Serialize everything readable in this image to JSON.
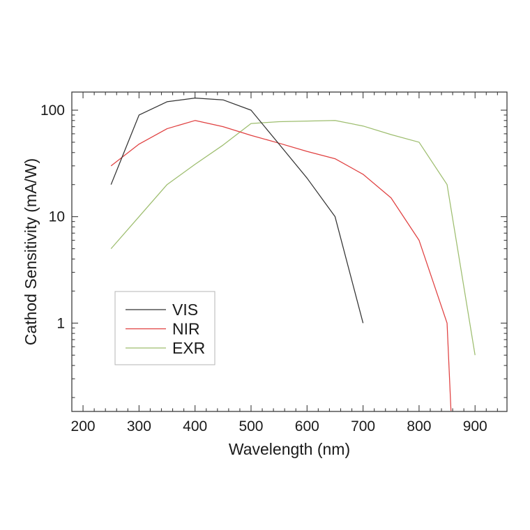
{
  "figure": {
    "background": "#ffffff"
  },
  "chart_data": {
    "type": "line",
    "title": "",
    "xlabel": "Wavelength (nm)",
    "ylabel": "Cathod Sensitivity (mA/W)",
    "x_scale": "linear",
    "y_scale": "log",
    "xlim": [
      180,
      957
    ],
    "ylim": [
      0.148,
      148
    ],
    "x_major_ticks": [
      200,
      300,
      400,
      500,
      600,
      700,
      800,
      900
    ],
    "x_tick_labels": [
      "200",
      "300",
      "400",
      "500",
      "600",
      "700",
      "800",
      "900"
    ],
    "x_minor_step": 20,
    "y_major_ticks": [
      1,
      10,
      100
    ],
    "y_tick_labels": [
      "1",
      "10",
      "100"
    ],
    "grid": false,
    "legend_position": "lower-left",
    "frame_color": "#3c3c3c",
    "series": [
      {
        "name": "VIS",
        "color": "#333333",
        "points": [
          [
            250,
            20
          ],
          [
            300,
            90
          ],
          [
            350,
            120
          ],
          [
            400,
            130
          ],
          [
            450,
            125
          ],
          [
            500,
            100
          ],
          [
            550,
            48
          ],
          [
            600,
            23
          ],
          [
            650,
            10
          ],
          [
            700,
            1
          ]
        ]
      },
      {
        "name": "NIR",
        "color": "#e04040",
        "points": [
          [
            250,
            30
          ],
          [
            300,
            48
          ],
          [
            350,
            67
          ],
          [
            400,
            80
          ],
          [
            450,
            70
          ],
          [
            500,
            58
          ],
          [
            550,
            49
          ],
          [
            600,
            41
          ],
          [
            650,
            35
          ],
          [
            700,
            25
          ],
          [
            750,
            15
          ],
          [
            800,
            6
          ],
          [
            850,
            1
          ],
          [
            857,
            0.15
          ]
        ]
      },
      {
        "name": "EXR",
        "color": "#9dbd6e",
        "points": [
          [
            250,
            5
          ],
          [
            300,
            10
          ],
          [
            350,
            20
          ],
          [
            400,
            31
          ],
          [
            450,
            47
          ],
          [
            500,
            75
          ],
          [
            550,
            78
          ],
          [
            600,
            79
          ],
          [
            650,
            80
          ],
          [
            700,
            71
          ],
          [
            750,
            59
          ],
          [
            800,
            50
          ],
          [
            850,
            20
          ],
          [
            900,
            0.5
          ]
        ]
      }
    ],
    "legend": [
      "VIS",
      "NIR",
      "EXR"
    ]
  }
}
